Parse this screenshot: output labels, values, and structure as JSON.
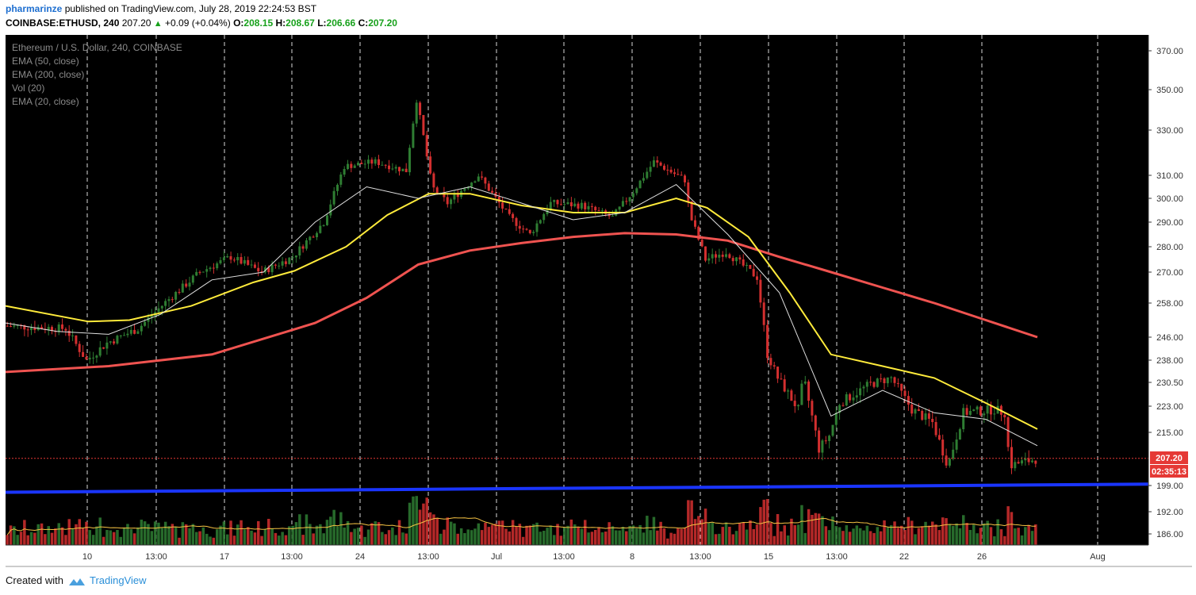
{
  "header": {
    "author": "pharmarinze",
    "published_text": "published on TradingView.com, July 28, 2019 22:24:53 BST",
    "symbol": "COINBASE:ETHUSD, 240",
    "last": "207.20",
    "change": "+0.09 (+0.04%)",
    "o_label": "O:",
    "o_value": "208.15",
    "h_label": "H:",
    "h_value": "208.67",
    "l_label": "L:",
    "l_value": "206.66",
    "c_label": "C:",
    "c_value": "207.20"
  },
  "legend": {
    "title": "Ethereum / U.S. Dollar, 240, COINBASE",
    "items": [
      "EMA (50, close)",
      "EMA (200, close)",
      "Vol (20)",
      "EMA (20, close)"
    ]
  },
  "footer": {
    "created_with": "Created with",
    "brand": "TradingView"
  },
  "colors": {
    "background": "#000000",
    "up": "#2e7d32",
    "down": "#d32f2f",
    "ema20": "#e0e0e0",
    "ema50": "#ffeb3b",
    "ema200": "#ef5350",
    "support": "#1a35ff",
    "vol_ma": "#f5c243",
    "price_label": "#e53935"
  },
  "chart_data": {
    "type": "candlestick",
    "y_ticks": [
      "370.00",
      "350.00",
      "330.00",
      "310.00",
      "300.00",
      "290.00",
      "280.00",
      "270.00",
      "258.00",
      "246.00",
      "238.00",
      "230.50",
      "223.00",
      "215.00",
      "199.00",
      "192.00",
      "186.00"
    ],
    "x_ticks": [
      "10",
      "13:00",
      "17",
      "13:00",
      "24",
      "13:00",
      "Jul",
      "13:00",
      "8",
      "13:00",
      "15",
      "13:00",
      "22",
      "26",
      "Aug"
    ],
    "current_price_label": "207.20",
    "countdown_label": "02:35:13",
    "current_price": 207.2,
    "support_level": [
      197.2,
      199.4
    ],
    "ema200": [
      [
        0,
        234
      ],
      [
        0.1,
        236
      ],
      [
        0.2,
        240
      ],
      [
        0.3,
        251
      ],
      [
        0.35,
        260
      ],
      [
        0.4,
        273
      ],
      [
        0.45,
        278.5
      ],
      [
        0.5,
        281.5
      ],
      [
        0.55,
        284
      ],
      [
        0.6,
        285.5
      ],
      [
        0.65,
        285
      ],
      [
        0.7,
        282.5
      ],
      [
        0.75,
        276
      ],
      [
        0.8,
        270
      ],
      [
        0.85,
        264
      ],
      [
        0.9,
        258
      ],
      [
        0.95,
        252
      ],
      [
        1.0,
        246
      ]
    ],
    "ema50": [
      [
        0,
        257
      ],
      [
        0.08,
        251.5
      ],
      [
        0.12,
        252
      ],
      [
        0.18,
        257
      ],
      [
        0.24,
        266
      ],
      [
        0.28,
        270.5
      ],
      [
        0.33,
        280
      ],
      [
        0.37,
        293
      ],
      [
        0.41,
        302
      ],
      [
        0.45,
        302
      ],
      [
        0.5,
        297
      ],
      [
        0.55,
        294
      ],
      [
        0.6,
        294
      ],
      [
        0.65,
        300
      ],
      [
        0.68,
        296
      ],
      [
        0.72,
        284
      ],
      [
        0.76,
        262
      ],
      [
        0.8,
        240
      ],
      [
        0.85,
        236
      ],
      [
        0.9,
        232
      ],
      [
        0.95,
        224
      ],
      [
        1.0,
        216
      ]
    ],
    "ema20": [
      [
        0,
        251
      ],
      [
        0.05,
        248
      ],
      [
        0.1,
        247
      ],
      [
        0.15,
        254
      ],
      [
        0.2,
        267
      ],
      [
        0.25,
        270
      ],
      [
        0.3,
        290
      ],
      [
        0.35,
        305
      ],
      [
        0.4,
        300
      ],
      [
        0.45,
        305
      ],
      [
        0.5,
        298
      ],
      [
        0.55,
        291
      ],
      [
        0.6,
        294
      ],
      [
        0.65,
        306
      ],
      [
        0.7,
        285
      ],
      [
        0.75,
        262
      ],
      [
        0.8,
        220
      ],
      [
        0.85,
        228
      ],
      [
        0.9,
        221
      ],
      [
        0.95,
        219
      ],
      [
        1.0,
        211
      ]
    ]
  }
}
